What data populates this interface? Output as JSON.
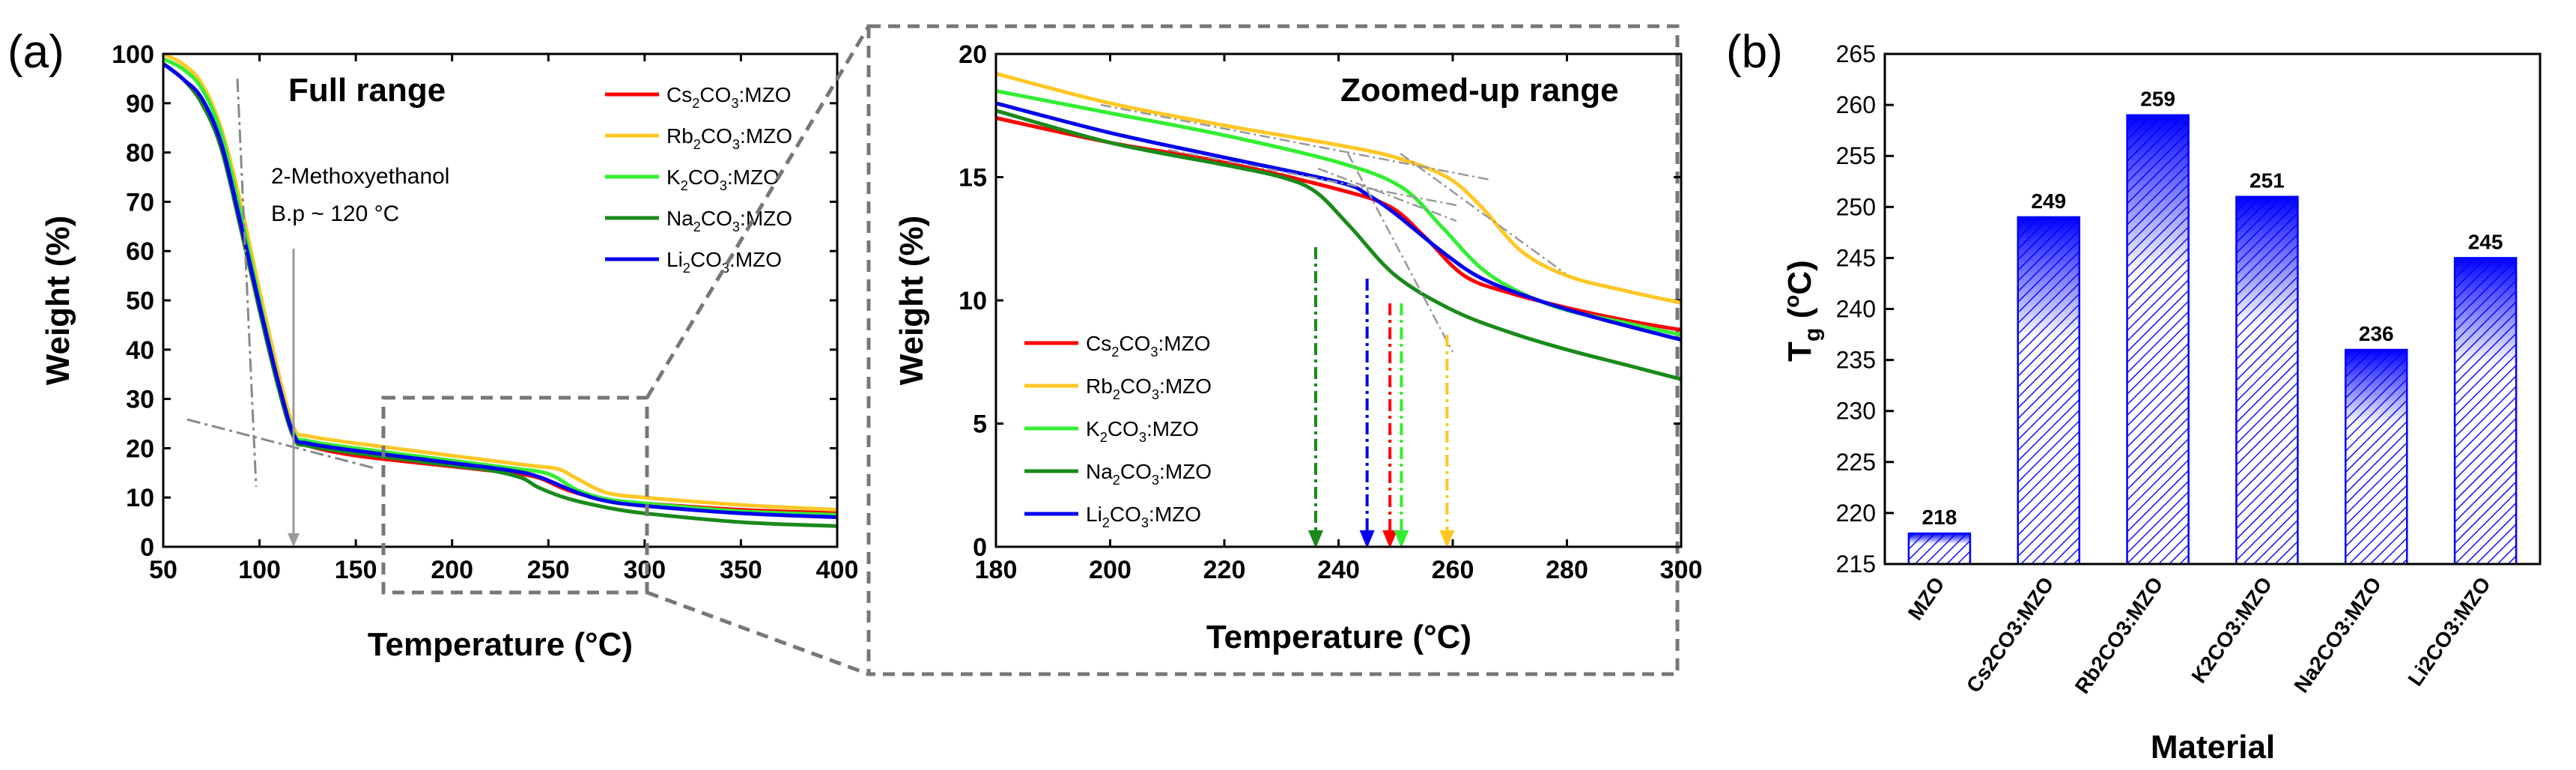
{
  "panel_a": {
    "label": "(a)",
    "left_title": "Full range",
    "right_title": "Zoomed-up range",
    "annotation_line1": "2-Methoxyethanol",
    "annotation_line2": "B.p ~ 120 °C"
  },
  "panel_b": {
    "label": "(b)"
  },
  "chart_data": [
    {
      "id": "full-range",
      "type": "line",
      "title": "Full range",
      "xlabel": "Temperature (°C)",
      "ylabel": "Weight (%)",
      "xlim": [
        50,
        400
      ],
      "ylim": [
        0,
        100
      ],
      "xticks": [
        "50",
        "100",
        "150",
        "200",
        "250",
        "300",
        "350",
        "400"
      ],
      "yticks": [
        "0",
        "10",
        "20",
        "30",
        "40",
        "50",
        "60",
        "70",
        "80",
        "90",
        "100"
      ],
      "legend_position": "top-right",
      "series": [
        {
          "name": "Cs2CO3:MZO",
          "legend_base": "Cs",
          "legend_sub": "2",
          "legend_mid": "CO",
          "legend_sub2": "3",
          "legend_tail": ":MZO",
          "color": "#ff0000",
          "x": [
            50,
            60,
            70,
            80,
            90,
            100,
            110,
            118,
            125,
            150,
            200,
            230,
            245,
            260,
            280,
            300,
            350,
            400
          ],
          "y": [
            98,
            95,
            90,
            81,
            65,
            48,
            32,
            22,
            20.5,
            18.5,
            16.3,
            15,
            14,
            11.5,
            9.5,
            8.8,
            7.5,
            6.8
          ]
        },
        {
          "name": "Rb2CO3:MZO",
          "legend_base": "Rb",
          "legend_sub": "2",
          "legend_mid": "CO",
          "legend_sub2": "3",
          "legend_tail": ":MZO",
          "color": "#ffc726",
          "x": [
            50,
            60,
            70,
            80,
            90,
            100,
            110,
            118,
            125,
            150,
            200,
            240,
            255,
            265,
            280,
            300,
            350,
            400
          ],
          "y": [
            100,
            98,
            94,
            85,
            70,
            52,
            35,
            24,
            22.5,
            21,
            18.5,
            16.5,
            15.8,
            13.8,
            11,
            10,
            8.5,
            7.5
          ]
        },
        {
          "name": "K2CO3:MZO",
          "legend_base": "K",
          "legend_sub": "2",
          "legend_mid": "CO",
          "legend_sub2": "3",
          "legend_tail": ":MZO",
          "color": "#33ee33",
          "x": [
            50,
            60,
            70,
            80,
            90,
            100,
            110,
            118,
            125,
            150,
            200,
            230,
            250,
            265,
            280,
            300,
            350,
            400
          ],
          "y": [
            99,
            97,
            93,
            84,
            68,
            50,
            33,
            23,
            21.5,
            20,
            17.5,
            16,
            14.8,
            11.5,
            9.7,
            8.8,
            7.2,
            6.5
          ]
        },
        {
          "name": "Na2CO3:MZO",
          "legend_base": "Na",
          "legend_sub": "2",
          "legend_mid": "CO",
          "legend_sub2": "3",
          "legend_tail": ":MZO",
          "color": "#1a8a1a",
          "x": [
            50,
            60,
            70,
            80,
            90,
            100,
            110,
            118,
            125,
            150,
            200,
            220,
            236,
            245,
            260,
            280,
            300,
            350,
            400
          ],
          "y": [
            98,
            95,
            90,
            81,
            65,
            48,
            32,
            22,
            20.5,
            19,
            16.5,
            15.5,
            14,
            12,
            9.8,
            8,
            6.8,
            5,
            4.2
          ]
        },
        {
          "name": "Li2CO3:MZO",
          "legend_base": "Li",
          "legend_sub": "2",
          "legend_mid": "CO",
          "legend_sub2": "3",
          "legend_tail": ":MZO",
          "color": "#0000ee",
          "x": [
            50,
            60,
            70,
            80,
            90,
            100,
            110,
            118,
            125,
            150,
            200,
            230,
            245,
            265,
            280,
            300,
            350,
            400
          ],
          "y": [
            98,
            95,
            91,
            82,
            66,
            49,
            33,
            22.5,
            21,
            19.5,
            17,
            15.5,
            14.2,
            11,
            9.3,
            8.3,
            6.8,
            6
          ]
        }
      ]
    },
    {
      "id": "zoomed-range",
      "type": "line",
      "title": "Zoomed-up range",
      "xlabel": "Temperature (°C)",
      "ylabel": "Weight (%)",
      "xlim": [
        180,
        300
      ],
      "ylim": [
        0,
        20
      ],
      "xticks": [
        "180",
        "200",
        "220",
        "240",
        "260",
        "280",
        "300"
      ],
      "yticks": [
        "0",
        "5",
        "10",
        "15",
        "20"
      ],
      "legend_position": "bottom-left",
      "onset_markers": [
        {
          "series": "Na2CO3:MZO",
          "x": 236,
          "color": "#1a8a1a"
        },
        {
          "series": "Li2CO3:MZO",
          "x": 245,
          "color": "#0000ee"
        },
        {
          "series": "Cs2CO3:MZO",
          "x": 249,
          "color": "#ff0000"
        },
        {
          "series": "K2CO3:MZO",
          "x": 251,
          "color": "#33ee33"
        },
        {
          "series": "Rb2CO3:MZO",
          "x": 259,
          "color": "#ffc726"
        }
      ],
      "series": [
        {
          "name": "Cs2CO3:MZO",
          "color": "#ff0000",
          "x": [
            180,
            200,
            220,
            240,
            249,
            255,
            262,
            270,
            280,
            290,
            300
          ],
          "y": [
            17.4,
            16.4,
            15.6,
            14.5,
            13.8,
            12.6,
            11,
            10.3,
            9.7,
            9.2,
            8.8
          ]
        },
        {
          "name": "Rb2CO3:MZO",
          "color": "#ffc726",
          "x": [
            180,
            200,
            220,
            240,
            250,
            259,
            265,
            272,
            280,
            290,
            300
          ],
          "y": [
            19.2,
            18,
            17.1,
            16.3,
            15.8,
            15,
            13.8,
            12,
            11,
            10.4,
            9.9
          ]
        },
        {
          "name": "K2CO3:MZO",
          "color": "#33ee33",
          "x": [
            180,
            200,
            220,
            240,
            251,
            258,
            265,
            272,
            280,
            290,
            300
          ],
          "y": [
            18.5,
            17.6,
            16.7,
            15.6,
            14.6,
            13,
            11.3,
            10.3,
            9.6,
            9.1,
            8.6
          ]
        },
        {
          "name": "Na2CO3:MZO",
          "color": "#1a8a1a",
          "x": [
            180,
            200,
            220,
            230,
            236,
            242,
            250,
            260,
            270,
            280,
            290,
            300
          ],
          "y": [
            17.7,
            16.4,
            15.5,
            15,
            14.4,
            13,
            11,
            9.6,
            8.7,
            8,
            7.4,
            6.8
          ]
        },
        {
          "name": "Li2CO3:MZO",
          "color": "#0000ee",
          "x": [
            180,
            200,
            220,
            240,
            245,
            250,
            258,
            265,
            275,
            285,
            300
          ],
          "y": [
            18,
            16.8,
            15.8,
            14.8,
            14.3,
            13.5,
            12,
            10.9,
            10,
            9.3,
            8.4
          ]
        }
      ]
    },
    {
      "id": "tg-bars",
      "type": "bar",
      "title": "",
      "xlabel": "Material",
      "ylabel": "Tg (°C)",
      "ylim": [
        215,
        265
      ],
      "yticks": [
        "215",
        "220",
        "225",
        "230",
        "235",
        "240",
        "245",
        "250",
        "255",
        "260",
        "265"
      ],
      "categories": [
        "MZO",
        "Cs2CO3:MZO",
        "Rb2CO3:MZO",
        "K2CO3:MZO",
        "Na2CO3:MZO",
        "Li2CO3:MZO"
      ],
      "values": [
        218,
        249,
        259,
        251,
        236,
        245
      ],
      "value_labels": [
        "218",
        "249",
        "259",
        "251",
        "236",
        "245"
      ],
      "bar_color": "#0000ff"
    }
  ]
}
